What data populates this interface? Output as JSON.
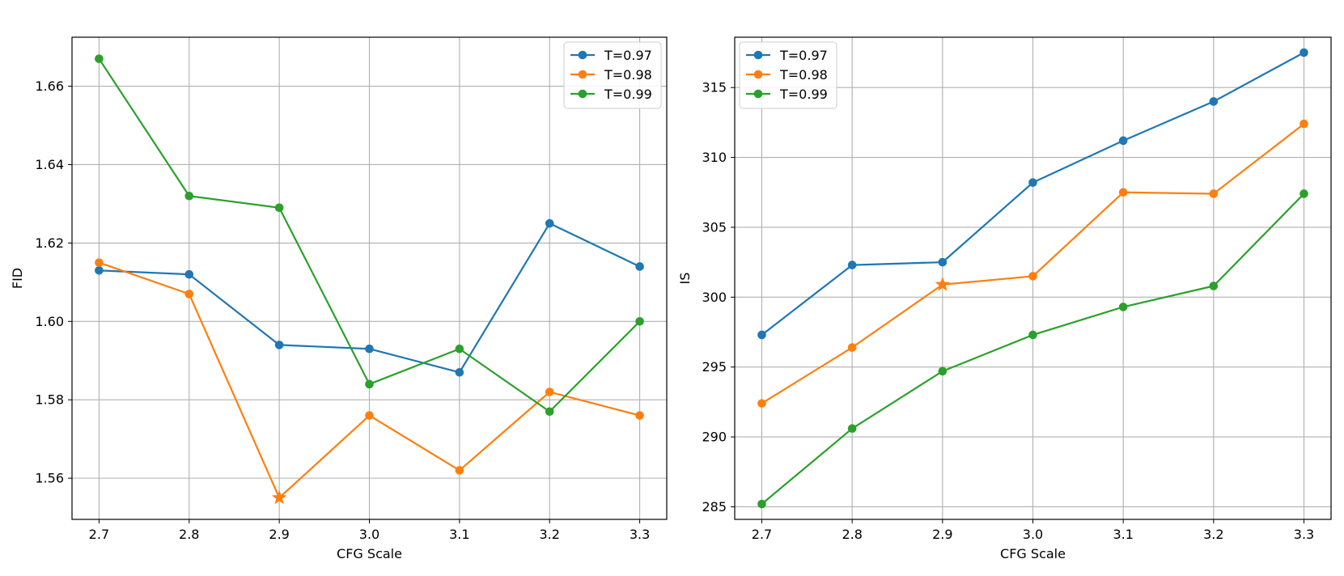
{
  "chart_data": [
    {
      "type": "line",
      "xlabel": "CFG Scale",
      "ylabel": "FID",
      "x": [
        2.7,
        2.8,
        2.9,
        3.0,
        3.1,
        3.2,
        3.3
      ],
      "xticks": [
        "2.7",
        "2.8",
        "2.9",
        "3.0",
        "3.1",
        "3.2",
        "3.3"
      ],
      "yticks": [
        "1.56",
        "1.58",
        "1.60",
        "1.62",
        "1.64",
        "1.66"
      ],
      "ytick_values": [
        1.56,
        1.58,
        1.6,
        1.62,
        1.64,
        1.66
      ],
      "xlim": [
        2.67,
        3.33
      ],
      "ylim": [
        1.5495,
        1.6725
      ],
      "grid": true,
      "legend": "top-right",
      "series": [
        {
          "name": "T=0.97",
          "color": "#1f77b4",
          "values": [
            1.613,
            1.612,
            1.594,
            1.593,
            1.587,
            1.625,
            1.614
          ]
        },
        {
          "name": "T=0.98",
          "color": "#ff7f0e",
          "values": [
            1.615,
            1.607,
            1.555,
            1.576,
            1.562,
            1.582,
            1.576
          ],
          "star_index": 2
        },
        {
          "name": "T=0.99",
          "color": "#2ca02c",
          "values": [
            1.667,
            1.632,
            1.629,
            1.584,
            1.593,
            1.577,
            1.6
          ]
        }
      ]
    },
    {
      "type": "line",
      "xlabel": "CFG Scale",
      "ylabel": "IS",
      "x": [
        2.7,
        2.8,
        2.9,
        3.0,
        3.1,
        3.2,
        3.3
      ],
      "xticks": [
        "2.7",
        "2.8",
        "2.9",
        "3.0",
        "3.1",
        "3.2",
        "3.3"
      ],
      "yticks": [
        "285",
        "290",
        "295",
        "300",
        "305",
        "310",
        "315"
      ],
      "ytick_values": [
        285,
        290,
        295,
        300,
        305,
        310,
        315
      ],
      "xlim": [
        2.67,
        3.33
      ],
      "ylim": [
        284.1,
        318.6
      ],
      "grid": true,
      "legend": "top-left",
      "series": [
        {
          "name": "T=0.97",
          "color": "#1f77b4",
          "values": [
            297.3,
            302.3,
            302.5,
            308.2,
            311.2,
            314.0,
            317.5
          ]
        },
        {
          "name": "T=0.98",
          "color": "#ff7f0e",
          "values": [
            292.4,
            296.4,
            300.9,
            301.5,
            307.5,
            307.4,
            312.4
          ],
          "star_index": 2
        },
        {
          "name": "T=0.99",
          "color": "#2ca02c",
          "values": [
            285.2,
            290.6,
            294.7,
            297.3,
            299.3,
            300.8,
            307.4
          ]
        }
      ]
    }
  ]
}
